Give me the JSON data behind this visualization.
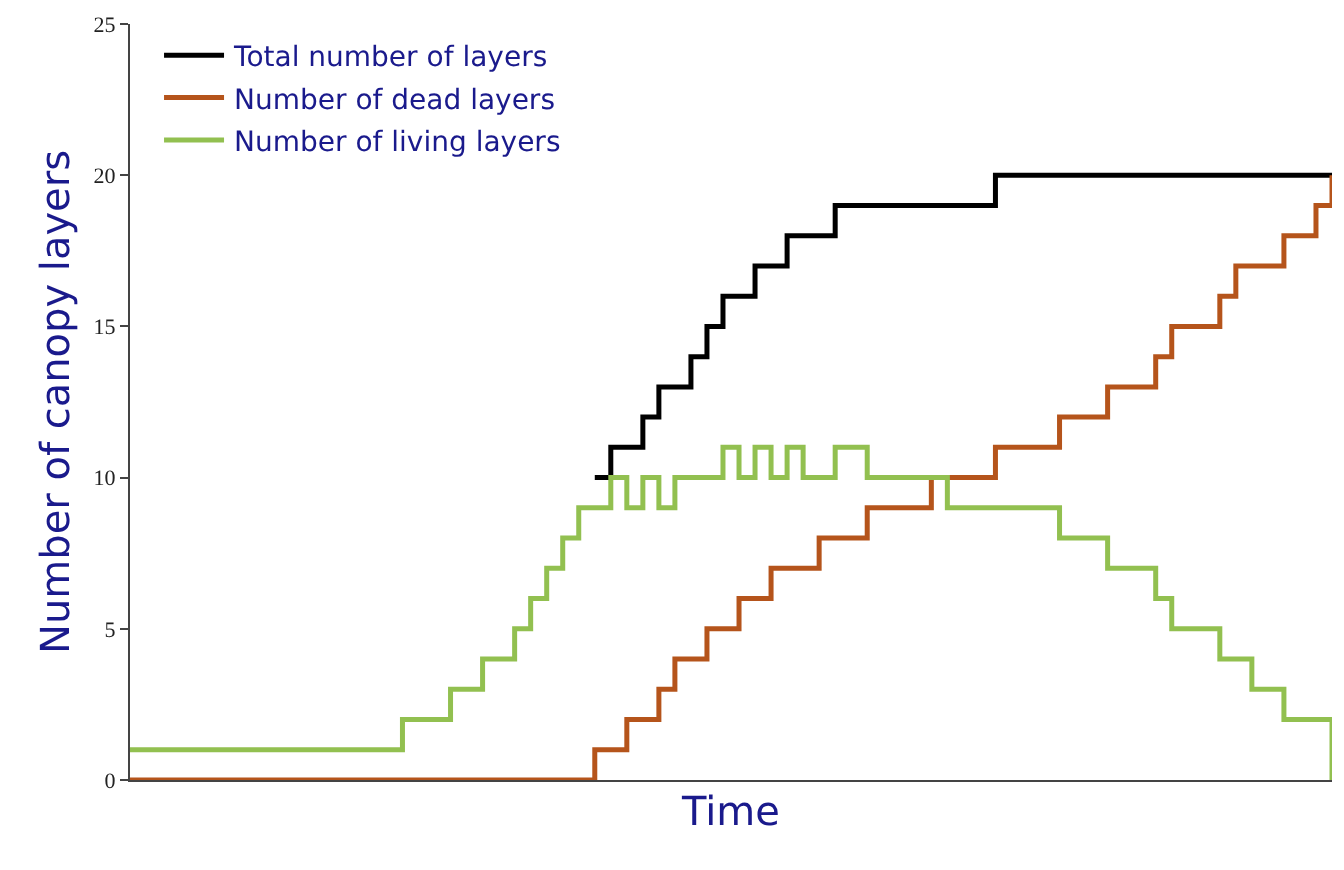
{
  "chart_data": {
    "type": "step",
    "xlabel": "Time",
    "ylabel": "Number of canopy layers",
    "categories": [
      null,
      null,
      null,
      null,
      null,
      null,
      null,
      null,
      null,
      null,
      null,
      null,
      null,
      null,
      null,
      null,
      null,
      null,
      null,
      null,
      null,
      null,
      null,
      null,
      null,
      null,
      null,
      null,
      null,
      null,
      null,
      null,
      null,
      null,
      null,
      null,
      null,
      null,
      null,
      null,
      null,
      null,
      null,
      null,
      null,
      null,
      null,
      null,
      null,
      null,
      null,
      null,
      null,
      null,
      null,
      null,
      null,
      null,
      null,
      null,
      null,
      null,
      null,
      null,
      null,
      null,
      null,
      null,
      null,
      null,
      null,
      null,
      null,
      null,
      null,
      null
    ],
    "series": [
      {
        "name": "Total number of layers",
        "color": "#000000",
        "values": [
          null,
          null,
          null,
          null,
          null,
          null,
          null,
          null,
          null,
          null,
          null,
          null,
          null,
          null,
          null,
          null,
          null,
          null,
          null,
          null,
          null,
          null,
          null,
          null,
          null,
          null,
          null,
          null,
          null,
          10,
          11,
          11,
          12,
          13,
          13,
          14,
          15,
          16,
          16,
          17,
          17,
          18,
          18,
          18,
          19,
          19,
          19,
          19,
          19,
          19,
          19,
          19,
          19,
          19,
          20,
          20,
          20,
          20,
          20,
          20,
          20,
          20,
          20,
          20,
          20,
          20,
          20,
          20,
          20,
          20,
          20,
          20,
          20,
          20,
          20,
          20
        ]
      },
      {
        "name": "Number of dead layers",
        "color": "#b5541b",
        "values": [
          0,
          0,
          0,
          0,
          0,
          0,
          0,
          0,
          0,
          0,
          0,
          0,
          0,
          0,
          0,
          0,
          0,
          0,
          0,
          0,
          0,
          0,
          0,
          0,
          0,
          0,
          0,
          0,
          0,
          1,
          1,
          2,
          2,
          3,
          4,
          4,
          5,
          5,
          6,
          6,
          7,
          7,
          7,
          8,
          8,
          8,
          9,
          9,
          9,
          9,
          10,
          10,
          10,
          10,
          11,
          11,
          11,
          11,
          12,
          12,
          12,
          13,
          13,
          13,
          14,
          15,
          15,
          15,
          16,
          17,
          17,
          17,
          18,
          18,
          19,
          20
        ]
      },
      {
        "name": "Number of living layers",
        "color": "#92c050",
        "values": [
          1,
          1,
          1,
          1,
          1,
          1,
          1,
          1,
          1,
          1,
          1,
          1,
          1,
          1,
          1,
          1,
          1,
          2,
          2,
          2,
          3,
          3,
          4,
          4,
          5,
          6,
          7,
          8,
          9,
          9,
          10,
          9,
          10,
          9,
          10,
          10,
          10,
          11,
          10,
          11,
          10,
          11,
          10,
          10,
          11,
          11,
          10,
          10,
          10,
          10,
          10,
          9,
          9,
          9,
          9,
          9,
          9,
          9,
          8,
          8,
          8,
          7,
          7,
          7,
          6,
          5,
          5,
          5,
          4,
          4,
          3,
          3,
          2,
          2,
          2,
          0
        ]
      }
    ],
    "ylim": [
      0,
      25
    ],
    "yticks": [
      0,
      5,
      10,
      15,
      20,
      25
    ],
    "legend": "top left",
    "tick_labels": "y",
    "line_style": "solid"
  }
}
